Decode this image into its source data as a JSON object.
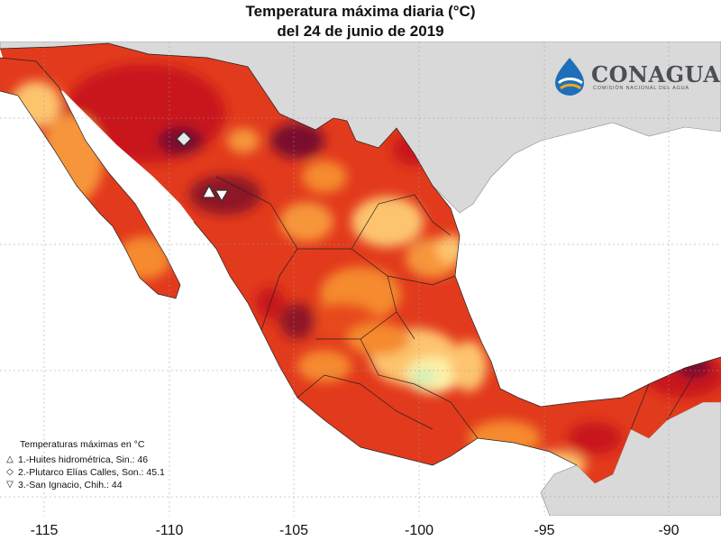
{
  "title_line1": "Temperatura máxima diaria (°C)",
  "title_line2": "del 24 de junio de 2019",
  "logo": {
    "word": "CONAGUA",
    "subtitle": "COMISIÓN NACIONAL DEL AGUA",
    "icon": "water-drop-logo-icon"
  },
  "legend": {
    "title": "Temperaturas máximas en °C",
    "items": [
      {
        "symbol": "△",
        "symbol_name": "triangle-up-icon",
        "text": "1.-Huites hidrométrica, Sin.: 46"
      },
      {
        "symbol": "◇",
        "symbol_name": "diamond-icon",
        "text": "2.-Plutarco Elías Calles, Son.: 45.1"
      },
      {
        "symbol": "▽",
        "symbol_name": "triangle-down-icon",
        "text": "3.-San Ignacio, Chih.: 44"
      }
    ]
  },
  "x_ticks": [
    "-115",
    "-110",
    "-105",
    "-100",
    "-95",
    "-90"
  ],
  "colors": {
    "ocean": "#ffffff",
    "land_other": "#d9d9d9",
    "very_hot": "#7a0f2e",
    "hot": "#c8171d",
    "warm": "#e8401c",
    "mild": "#f58a2e",
    "cooler": "#fdc46e",
    "cool": "#fff1a8",
    "coolest": "#d7efb4"
  }
}
